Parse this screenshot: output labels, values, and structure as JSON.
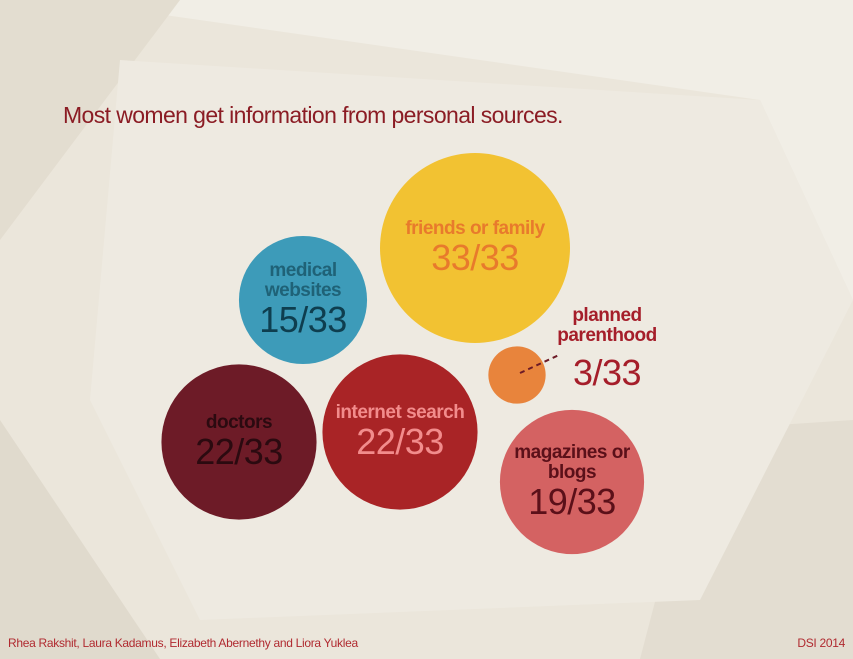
{
  "chart_data": {
    "type": "bubble",
    "title": "Most women get information from personal sources.",
    "categories": [
      "friends or family",
      "medical websites",
      "internet search",
      "doctors",
      "magazines or blogs",
      "planned parenthood"
    ],
    "values": [
      33,
      15,
      22,
      22,
      19,
      3
    ],
    "value_labels": [
      "33/33",
      "15/33",
      "22/33",
      "22/33",
      "19/33",
      "3/33"
    ],
    "colors": [
      "#f2c232",
      "#3d9bb9",
      "#a92426",
      "#6d1b27",
      "#d46262",
      "#e8843c"
    ],
    "label_colors": [
      "#e87a2c",
      "#1f6277",
      "#f28c8c",
      "#2b0a10",
      "#5b1019",
      "#a51e2a"
    ],
    "value_colors": [
      "#e87a2c",
      "#0e3e4f",
      "#f28c8c",
      "#2b0a10",
      "#5b1019",
      "#a51e2a"
    ],
    "footer_left": "Rhea Rakshit, Laura Kadamus, Elizabeth Abernethy and Liora Yuklea",
    "footer_right": "DSI 2014"
  }
}
